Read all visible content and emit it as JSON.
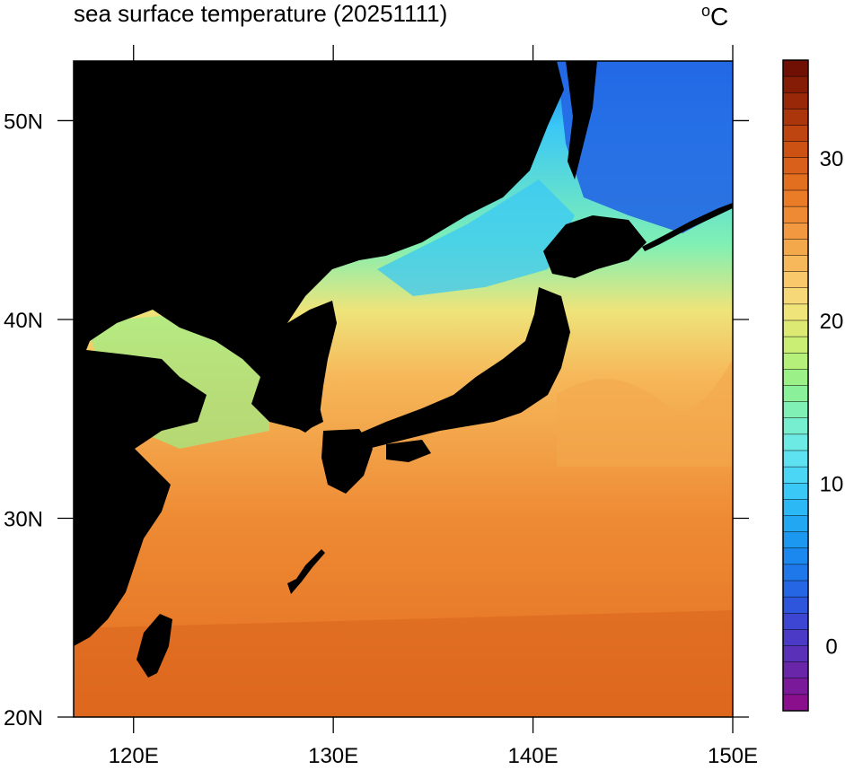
{
  "title": "sea surface temperature (20251111)",
  "unit": {
    "degree": "o",
    "letter": "C"
  },
  "map": {
    "region": {
      "lon": [
        117,
        150
      ],
      "lat": [
        20,
        53
      ]
    },
    "land_color": "#000000",
    "lon_ticks": [
      {
        "value": 120,
        "label": "120E"
      },
      {
        "value": 130,
        "label": "130E"
      },
      {
        "value": 140,
        "label": "140E"
      },
      {
        "value": 150,
        "label": "150E"
      }
    ],
    "lat_ticks": [
      {
        "value": 20,
        "label": "20N"
      },
      {
        "value": 30,
        "label": "30N"
      },
      {
        "value": 40,
        "label": "40N"
      },
      {
        "value": 50,
        "label": "50N"
      }
    ]
  },
  "colorbar": {
    "min": -4,
    "max": 36,
    "labels": [
      {
        "value": 0,
        "label": "0"
      },
      {
        "value": 10,
        "label": "10"
      },
      {
        "value": 20,
        "label": "20"
      },
      {
        "value": 30,
        "label": "30"
      }
    ],
    "colors": [
      "#8a0f8c",
      "#7a1a9a",
      "#6a26a8",
      "#5a30b8",
      "#4a3ac6",
      "#3c46d2",
      "#2e56dc",
      "#2466e4",
      "#1e78ea",
      "#1a88ee",
      "#1c98f0",
      "#22a8f2",
      "#2cb8f4",
      "#3ac8f6",
      "#4cd6f6",
      "#5ee2f2",
      "#6eeae4",
      "#78eed0",
      "#80f0b4",
      "#8af09a",
      "#9cf088",
      "#b4f07a",
      "#caee74",
      "#dcea74",
      "#eee47a",
      "#f6d878",
      "#f8c86a",
      "#f6b85a",
      "#f4a84c",
      "#f29840",
      "#ee8a34",
      "#ea7c28",
      "#e26e20",
      "#d8601a",
      "#cc5214",
      "#be4410",
      "#ac360c",
      "#982808",
      "#841c06",
      "#701004"
    ]
  }
}
